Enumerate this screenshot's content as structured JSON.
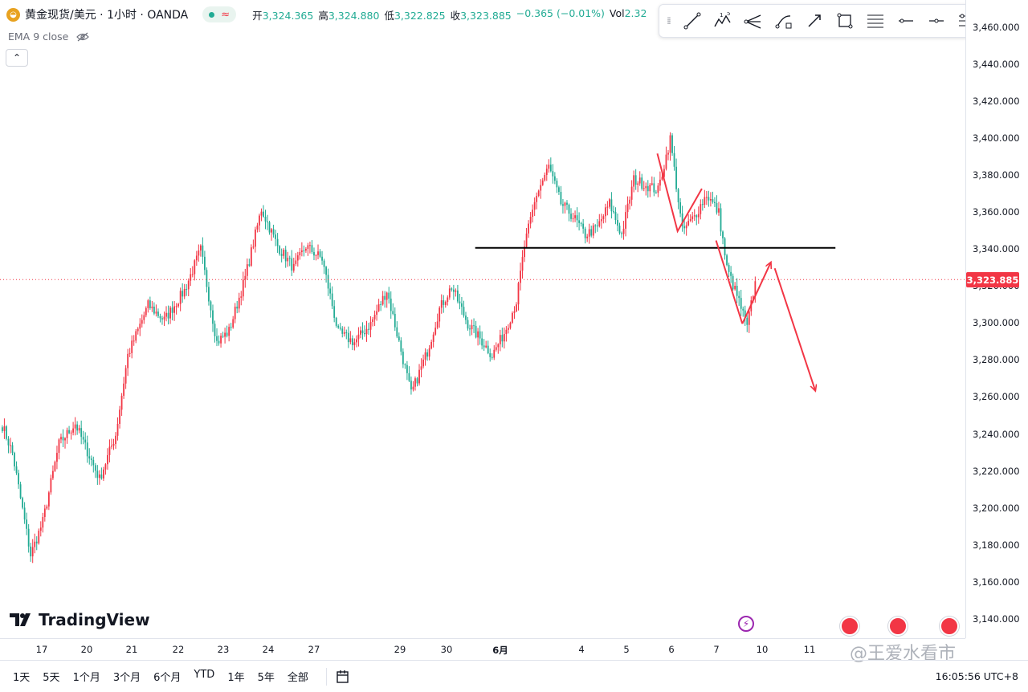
{
  "header": {
    "logo_glyph": "◒",
    "symbol_title": "黄金现货/美元 · 1小时 · OANDA",
    "wave_glyph": "≈",
    "ohlc": [
      {
        "label": "开",
        "value": "3,324.365"
      },
      {
        "label": "高",
        "value": "3,324.880"
      },
      {
        "label": "低",
        "value": "3,322.825"
      },
      {
        "label": "收",
        "value": "3,323.885"
      },
      {
        "label": "",
        "value": "−0.365 (−0.01%)"
      },
      {
        "label": "Vol",
        "value": "2.32"
      }
    ]
  },
  "indicator": {
    "label": "EMA 9 close",
    "icon": "eye-off-icon"
  },
  "collapse_glyph": "⌃",
  "toolbar": {
    "grip": "⁞⁞",
    "tools": [
      "trend-line-icon",
      "elliott-wave-icon",
      "pitchfork-icon",
      "curve-icon",
      "arrow-icon",
      "rectangle-icon",
      "fib-retracement-icon",
      "horizontal-ray-icon",
      "price-line-icon",
      "regression-icon",
      "settings-list-icon"
    ]
  },
  "chart_data": {
    "type": "candlestick",
    "title": "黄金现货/美元 · 1小时 · OANDA",
    "yticks": [
      "3,460.000",
      "3,440.000",
      "3,420.000",
      "3,400.000",
      "3,380.000",
      "3,360.000",
      "3,340.000",
      "3,320.000",
      "3,300.000",
      "3,280.000",
      "3,260.000",
      "3,240.000",
      "3,220.000",
      "3,200.000",
      "3,180.000",
      "3,160.000",
      "3,140.000"
    ],
    "ylim": [
      3130,
      3475
    ],
    "xticks": [
      "17",
      "20",
      "21",
      "22",
      "23",
      "24",
      "27",
      "29",
      "30",
      "6月",
      "4",
      "5",
      "6",
      "7",
      "10",
      "11"
    ],
    "last_price": "3,323.885",
    "horizontal_level": 3341,
    "anchors": [
      {
        "i": 0,
        "v": 3245
      },
      {
        "i": 5,
        "v": 3230
      },
      {
        "i": 14,
        "v": 3175
      },
      {
        "i": 20,
        "v": 3193
      },
      {
        "i": 28,
        "v": 3235
      },
      {
        "i": 36,
        "v": 3246
      },
      {
        "i": 48,
        "v": 3216
      },
      {
        "i": 56,
        "v": 3240
      },
      {
        "i": 62,
        "v": 3283
      },
      {
        "i": 72,
        "v": 3310
      },
      {
        "i": 80,
        "v": 3302
      },
      {
        "i": 90,
        "v": 3318
      },
      {
        "i": 98,
        "v": 3340
      },
      {
        "i": 106,
        "v": 3290
      },
      {
        "i": 112,
        "v": 3296
      },
      {
        "i": 120,
        "v": 3325
      },
      {
        "i": 128,
        "v": 3362
      },
      {
        "i": 136,
        "v": 3342
      },
      {
        "i": 144,
        "v": 3330
      },
      {
        "i": 150,
        "v": 3342
      },
      {
        "i": 158,
        "v": 3335
      },
      {
        "i": 166,
        "v": 3295
      },
      {
        "i": 174,
        "v": 3290
      },
      {
        "i": 182,
        "v": 3300
      },
      {
        "i": 190,
        "v": 3318
      },
      {
        "i": 196,
        "v": 3290
      },
      {
        "i": 202,
        "v": 3262
      },
      {
        "i": 210,
        "v": 3285
      },
      {
        "i": 216,
        "v": 3308
      },
      {
        "i": 222,
        "v": 3320
      },
      {
        "i": 230,
        "v": 3300
      },
      {
        "i": 236,
        "v": 3292
      },
      {
        "i": 242,
        "v": 3283
      },
      {
        "i": 248,
        "v": 3295
      },
      {
        "i": 254,
        "v": 3312
      },
      {
        "i": 258,
        "v": 3342
      },
      {
        "i": 264,
        "v": 3370
      },
      {
        "i": 270,
        "v": 3385
      },
      {
        "i": 276,
        "v": 3365
      },
      {
        "i": 282,
        "v": 3358
      },
      {
        "i": 288,
        "v": 3348
      },
      {
        "i": 294,
        "v": 3352
      },
      {
        "i": 300,
        "v": 3365
      },
      {
        "i": 306,
        "v": 3348
      },
      {
        "i": 312,
        "v": 3378
      },
      {
        "i": 318,
        "v": 3375
      },
      {
        "i": 324,
        "v": 3372
      },
      {
        "i": 330,
        "v": 3400
      },
      {
        "i": 336,
        "v": 3350
      },
      {
        "i": 342,
        "v": 3358
      },
      {
        "i": 348,
        "v": 3370
      },
      {
        "i": 354,
        "v": 3360
      },
      {
        "i": 358,
        "v": 3330
      },
      {
        "i": 364,
        "v": 3312
      },
      {
        "i": 368,
        "v": 3298
      },
      {
        "i": 372,
        "v": 3323
      }
    ],
    "annotations": [
      {
        "type": "hline",
        "y": 3341,
        "x_from_index": 234,
        "x_to_index": 412,
        "color": "#000000"
      },
      {
        "type": "path",
        "color": "#f23645",
        "points": [
          [
            324,
            3392
          ],
          [
            334,
            3350
          ],
          [
            346,
            3373
          ]
        ]
      },
      {
        "type": "path",
        "color": "#f23645",
        "points": [
          [
            353,
            3345
          ],
          [
            366,
            3300
          ]
        ]
      },
      {
        "type": "arrow",
        "color": "#f23645",
        "points": [
          [
            366,
            3300
          ],
          [
            380,
            3333
          ]
        ]
      },
      {
        "type": "arrow",
        "color": "#f23645",
        "points": [
          [
            382,
            3330
          ],
          [
            402,
            3264
          ]
        ]
      }
    ]
  },
  "event_icons": [
    "us-flag-icon",
    "us-flag-icon",
    "us-flag-icon"
  ],
  "tradingview": {
    "brand": "TradingView"
  },
  "bolt_glyph": "⚡",
  "ranges": [
    "1天",
    "5天",
    "1个月",
    "3个月",
    "6个月",
    "YTD",
    "1年",
    "5年",
    "全部"
  ],
  "compare_icon": "calendar-range-icon",
  "clock": "16:05:56 UTC+8",
  "watermark": "@王爱水看市",
  "colors": {
    "up": "#f23645",
    "down": "#22ab94",
    "hline": "#000000",
    "annot": "#f23645",
    "last": "#f23645"
  }
}
